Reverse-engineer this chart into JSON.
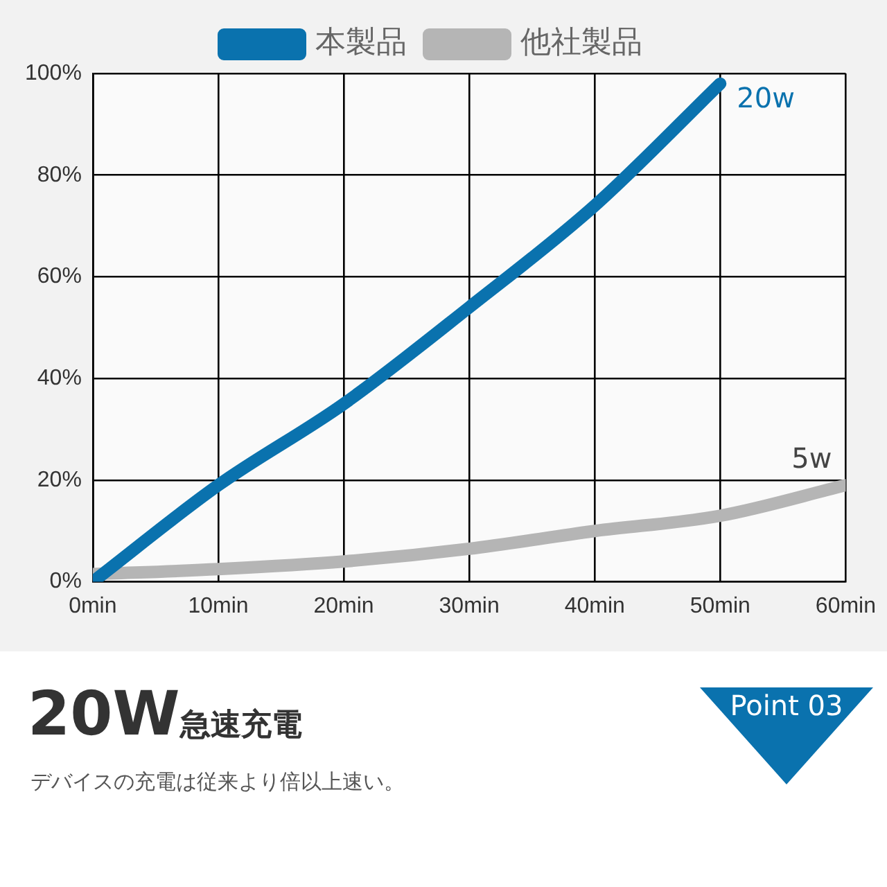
{
  "chart_data": {
    "type": "line",
    "x": [
      0,
      10,
      20,
      30,
      40,
      50,
      60
    ],
    "series": [
      {
        "name": "本製品",
        "color": "#0a72ae",
        "values": [
          0,
          19,
          35,
          54,
          74,
          98,
          null
        ]
      },
      {
        "name": "他社製品",
        "color": "#b5b5b5",
        "values": [
          1.5,
          2.5,
          4,
          6.5,
          10,
          13,
          19
        ]
      }
    ],
    "xlim": [
      0,
      60
    ],
    "xticks": [
      {
        "value": 0,
        "label": "0min"
      },
      {
        "value": 10,
        "label": "10min"
      },
      {
        "value": 20,
        "label": "20min"
      },
      {
        "value": 30,
        "label": "30min"
      },
      {
        "value": 40,
        "label": "40min"
      },
      {
        "value": 50,
        "label": "50min"
      },
      {
        "value": 60,
        "label": "60min"
      }
    ],
    "ylim": [
      0,
      100
    ],
    "yticks": [
      {
        "value": 0,
        "label": "0%"
      },
      {
        "value": 20,
        "label": "20%"
      },
      {
        "value": 40,
        "label": "40%"
      },
      {
        "value": 60,
        "label": "60%"
      },
      {
        "value": 80,
        "label": "80%"
      },
      {
        "value": 100,
        "label": "100%"
      }
    ],
    "grid": true,
    "legend": "top",
    "marker": "none",
    "line_style": "solid",
    "annotations": [
      {
        "text": "20w",
        "x": 50,
        "y": 98
      },
      {
        "text": "5w",
        "x": 60,
        "y": 19
      },
      "20W急速充電",
      "デバイスの充電は従来より倍以上速い。",
      "Point 03"
    ]
  }
}
